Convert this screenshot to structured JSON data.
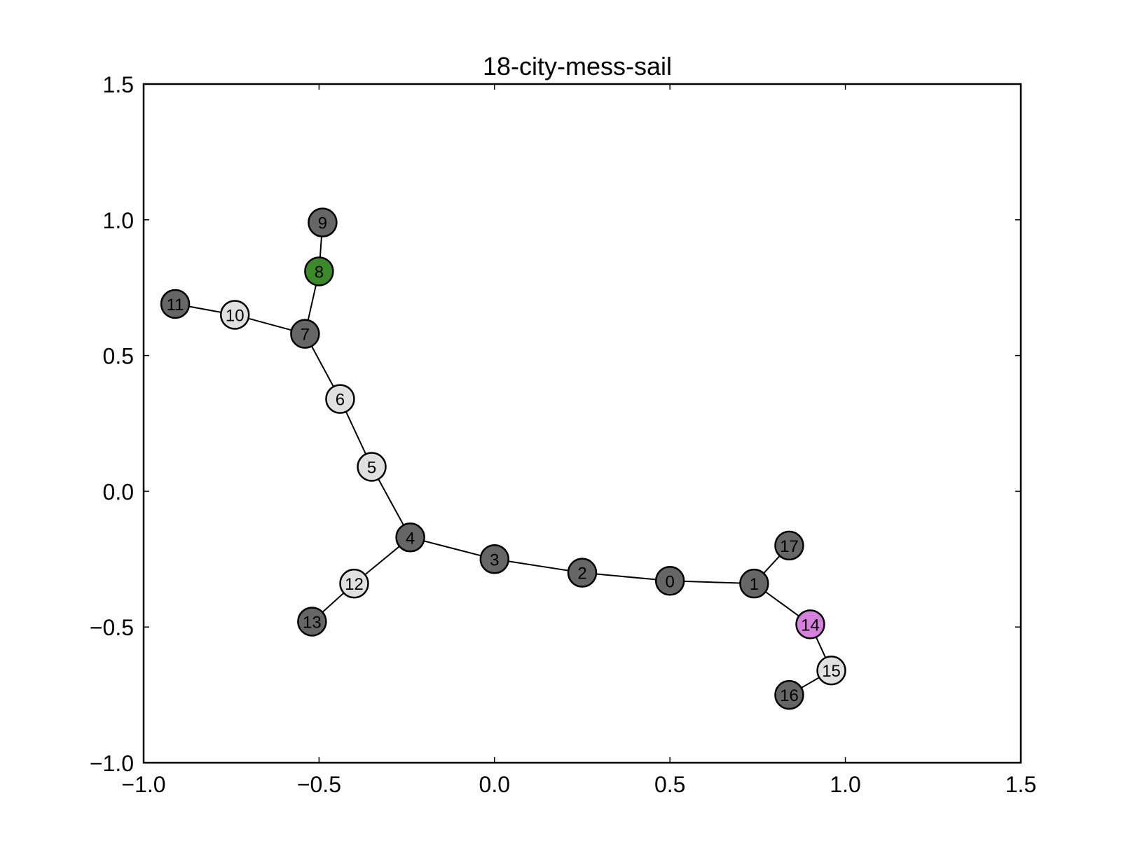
{
  "chart_data": {
    "type": "scatter",
    "title": "18-city-mess-sail",
    "xlabel": "",
    "ylabel": "",
    "xlim": [
      -1.0,
      1.5
    ],
    "ylim": [
      -1.0,
      1.5
    ],
    "x_ticks": [
      "−1.0",
      "−0.5",
      "0.0",
      "0.5",
      "1.0",
      "1.5"
    ],
    "x_tick_values": [
      -1.0,
      -0.5,
      0.0,
      0.5,
      1.0,
      1.5
    ],
    "y_ticks": [
      "−1.0",
      "−0.5",
      "0.0",
      "0.5",
      "1.0",
      "1.5"
    ],
    "y_tick_values": [
      -1.0,
      -0.5,
      0.0,
      0.5,
      1.0,
      1.5
    ],
    "grid": false,
    "colors": {
      "dark": "#666666",
      "light": "#e0e0e0",
      "green": "#3a8a2a",
      "violet": "#d580dd",
      "edge": "#000000"
    },
    "nodes": [
      {
        "id": "0",
        "x": 0.5,
        "y": -0.33,
        "color": "dark"
      },
      {
        "id": "1",
        "x": 0.74,
        "y": -0.34,
        "color": "dark"
      },
      {
        "id": "2",
        "x": 0.25,
        "y": -0.3,
        "color": "dark"
      },
      {
        "id": "3",
        "x": 0.0,
        "y": -0.25,
        "color": "dark"
      },
      {
        "id": "4",
        "x": -0.24,
        "y": -0.17,
        "color": "dark"
      },
      {
        "id": "5",
        "x": -0.35,
        "y": 0.09,
        "color": "light"
      },
      {
        "id": "6",
        "x": -0.44,
        "y": 0.34,
        "color": "light"
      },
      {
        "id": "7",
        "x": -0.54,
        "y": 0.58,
        "color": "dark"
      },
      {
        "id": "8",
        "x": -0.5,
        "y": 0.81,
        "color": "green"
      },
      {
        "id": "9",
        "x": -0.49,
        "y": 0.99,
        "color": "dark"
      },
      {
        "id": "10",
        "x": -0.74,
        "y": 0.65,
        "color": "light"
      },
      {
        "id": "11",
        "x": -0.91,
        "y": 0.69,
        "color": "dark"
      },
      {
        "id": "12",
        "x": -0.4,
        "y": -0.34,
        "color": "light"
      },
      {
        "id": "13",
        "x": -0.52,
        "y": -0.48,
        "color": "dark"
      },
      {
        "id": "14",
        "x": 0.9,
        "y": -0.49,
        "color": "violet"
      },
      {
        "id": "15",
        "x": 0.96,
        "y": -0.66,
        "color": "light"
      },
      {
        "id": "16",
        "x": 0.84,
        "y": -0.75,
        "color": "dark"
      },
      {
        "id": "17",
        "x": 0.84,
        "y": -0.2,
        "color": "dark"
      }
    ],
    "edges": [
      [
        "9",
        "8"
      ],
      [
        "8",
        "7"
      ],
      [
        "11",
        "10"
      ],
      [
        "10",
        "7"
      ],
      [
        "7",
        "6"
      ],
      [
        "6",
        "5"
      ],
      [
        "5",
        "4"
      ],
      [
        "4",
        "12"
      ],
      [
        "12",
        "13"
      ],
      [
        "4",
        "3"
      ],
      [
        "3",
        "2"
      ],
      [
        "2",
        "0"
      ],
      [
        "0",
        "1"
      ],
      [
        "1",
        "17"
      ],
      [
        "1",
        "14"
      ],
      [
        "14",
        "15"
      ],
      [
        "15",
        "16"
      ]
    ]
  }
}
